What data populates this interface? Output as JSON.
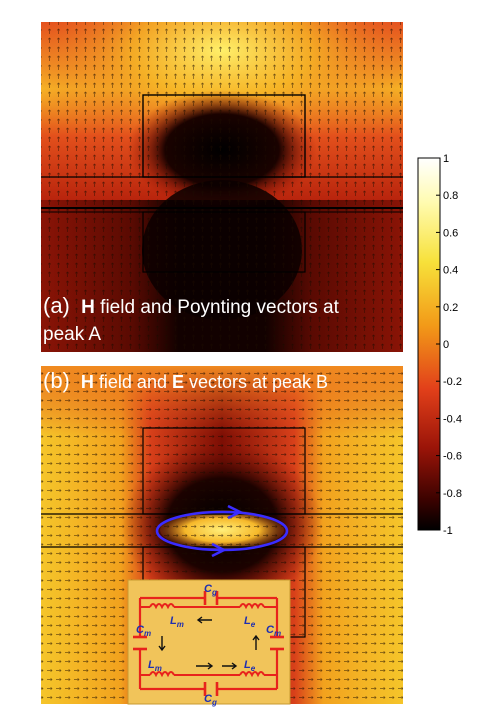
{
  "panel_a": {
    "letter": "(a)",
    "bold_symbol": "H",
    "caption_rest": " field and Poynting vectors at",
    "caption_line2": "peak A"
  },
  "panel_b": {
    "letter": "(b)",
    "bold_symbol_1": "H",
    "caption_mid": " field and ",
    "bold_symbol_2": "E",
    "caption_rest": " vectors at peak B"
  },
  "colorbar": {
    "ticks": [
      "1",
      "0.8",
      "0.6",
      "0.4",
      "0.2",
      "0",
      "-0.2",
      "-0.4",
      "-0.6",
      "-0.8",
      "-1"
    ],
    "min": -1,
    "max": 1
  },
  "circuit": {
    "cg_top": "C",
    "cg_top_sub": "g",
    "cg_bottom": "C",
    "cg_bottom_sub": "g",
    "lm_top": "L",
    "lm_top_sub": "m",
    "le_top": "L",
    "le_top_sub": "e",
    "lm_bottom": "L",
    "lm_bottom_sub": "m",
    "le_bottom": "L",
    "le_bottom_sub": "e",
    "cm_left": "C",
    "cm_left_sub": "m",
    "cm_right": "C",
    "cm_right_sub": "m"
  },
  "colors": {
    "wire": "#e8231c",
    "label": "#1f2fb0",
    "loop": "#3a2cff",
    "circuit_bg": "#f1c45a"
  }
}
